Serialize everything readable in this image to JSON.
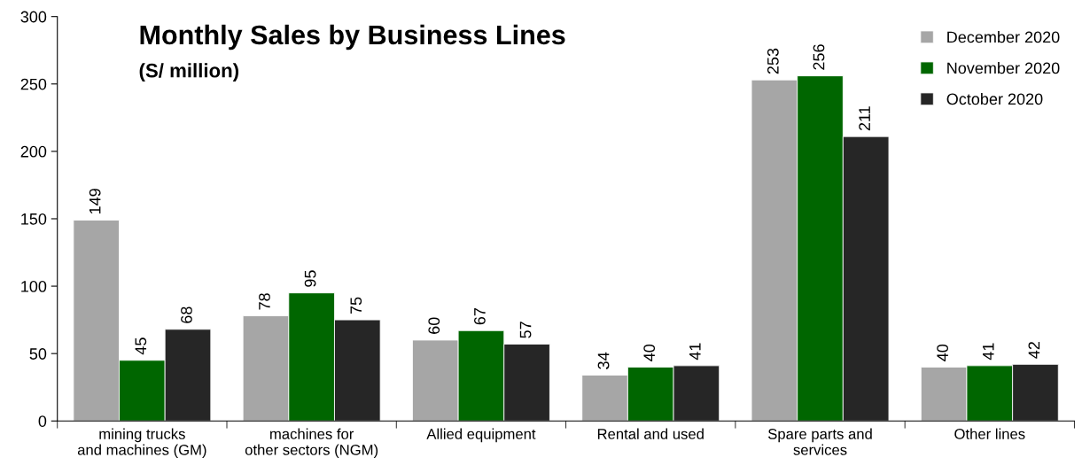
{
  "chart_data": {
    "type": "bar",
    "title": "Monthly Sales by Business Lines",
    "subtitle": "(S/ million)",
    "categories": [
      "mining trucks\nand machines (GM)",
      "machines for\nother sectors (NGM)",
      "Allied equipment",
      "Rental and used",
      "Spare parts and\nservices",
      "Other lines"
    ],
    "series": [
      {
        "name": "December 2020",
        "color": "#a6a6a6",
        "values": [
          149,
          78,
          60,
          34,
          253,
          40
        ]
      },
      {
        "name": "November 2020",
        "color": "#006600",
        "values": [
          45,
          95,
          67,
          40,
          256,
          41
        ]
      },
      {
        "name": "October 2020",
        "color": "#262626",
        "values": [
          68,
          75,
          57,
          41,
          211,
          42
        ]
      }
    ],
    "ylim": [
      0,
      300
    ],
    "yticks": [
      0,
      50,
      100,
      150,
      200,
      250,
      300
    ],
    "grid": false,
    "legend": "top right",
    "data_labels": true
  }
}
